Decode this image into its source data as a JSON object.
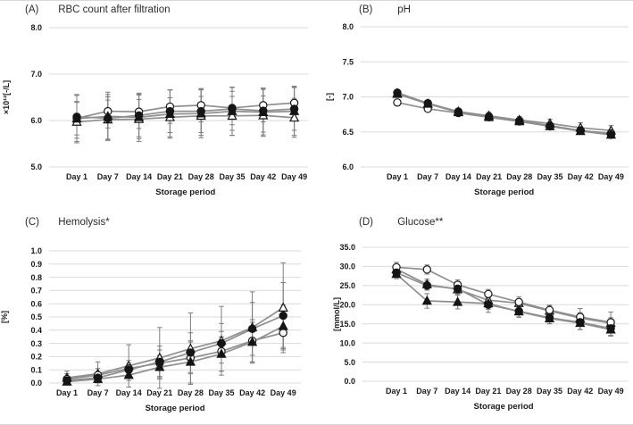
{
  "figure": {
    "xlabel": "Storage period",
    "categories": [
      "Day 1",
      "Day 7",
      "Day 14",
      "Day 21",
      "Day 28",
      "Day 35",
      "Day 42",
      "Day 49"
    ],
    "colors": {
      "gridline": "#d9d9d9",
      "series_line": "#8f8f8f",
      "error_bar": "#7d7d7d",
      "marker_stroke": "#151515",
      "text": "#1a1a1a"
    }
  },
  "chart_data": [
    {
      "type": "line",
      "panel_letter": "(A)",
      "title": "RBC count after filtration",
      "ylabel": "×10¹²[-/L]",
      "ylim": [
        5.0,
        8.0
      ],
      "yticks": [
        "8.0",
        "7.0",
        "6.0",
        "5.0"
      ],
      "grid": true,
      "legend": "none",
      "series": [
        {
          "name": "open-triangle",
          "marker": "open-triangle",
          "values": [
            5.97,
            6.02,
            6.03,
            6.07,
            6.1,
            6.1,
            6.11,
            6.06
          ],
          "err": 0.42
        },
        {
          "name": "open-circle",
          "marker": "open-circle",
          "values": [
            6.05,
            6.2,
            6.19,
            6.3,
            6.33,
            6.27,
            6.33,
            6.38
          ],
          "err": 0.36
        },
        {
          "name": "filled-triangle",
          "marker": "filled-triangle",
          "values": [
            6.04,
            6.09,
            6.07,
            6.14,
            6.15,
            6.2,
            6.18,
            6.2
          ],
          "err": 0.52
        },
        {
          "name": "filled-circle",
          "marker": "filled-circle",
          "values": [
            6.08,
            6.05,
            6.11,
            6.2,
            6.2,
            6.25,
            6.21,
            6.25
          ],
          "err": 0.46
        }
      ]
    },
    {
      "type": "line",
      "panel_letter": "(B)",
      "title": "pH",
      "ylabel": "[-]",
      "ylim": [
        6.0,
        8.0
      ],
      "yticks": [
        "8.0",
        "7.5",
        "7.0",
        "6.5",
        "6.0"
      ],
      "grid": true,
      "legend": "none",
      "series": [
        {
          "name": "open-triangle",
          "marker": "open-triangle",
          "values": [
            7.04,
            6.9,
            6.79,
            6.73,
            6.67,
            6.62,
            6.56,
            6.52
          ],
          "err": [
            0.03,
            0.03,
            0.04,
            0.05,
            0.05,
            0.06,
            0.07,
            0.07
          ]
        },
        {
          "name": "open-circle",
          "marker": "open-circle",
          "values": [
            6.92,
            6.83,
            6.77,
            6.71,
            6.65,
            6.58,
            6.52,
            6.48
          ],
          "err": 0.03
        },
        {
          "name": "filled-triangle",
          "marker": "filled-triangle",
          "values": [
            7.05,
            6.9,
            6.78,
            6.71,
            6.65,
            6.58,
            6.51,
            6.46
          ],
          "err": 0.03
        },
        {
          "name": "filled-circle",
          "marker": "filled-circle",
          "values": [
            7.06,
            6.91,
            6.79,
            6.72,
            6.66,
            6.59,
            6.52,
            6.46
          ],
          "err": 0.03
        }
      ]
    },
    {
      "type": "line",
      "panel_letter": "(C)",
      "title": "Hemolysis*",
      "ylabel": "[%]",
      "ylim": [
        0.0,
        1.0
      ],
      "yticks": [
        "1.0",
        "0.9",
        "0.8",
        "0.7",
        "0.6",
        "0.5",
        "0.4",
        "0.3",
        "0.2",
        "0.1",
        "0.0"
      ],
      "grid": true,
      "legend": "none",
      "series": [
        {
          "name": "open-triangle",
          "marker": "open-triangle",
          "values": [
            0.04,
            0.07,
            0.13,
            0.19,
            0.26,
            0.32,
            0.42,
            0.57
          ],
          "err": [
            0.05,
            0.09,
            0.16,
            0.23,
            0.27,
            0.26,
            0.27,
            0.34
          ]
        },
        {
          "name": "open-circle",
          "marker": "open-circle",
          "values": [
            0.03,
            0.06,
            0.11,
            0.15,
            0.19,
            0.24,
            0.32,
            0.38
          ],
          "err": [
            0.04,
            0.05,
            0.06,
            0.1,
            0.12,
            0.15,
            0.16,
            0.13
          ]
        },
        {
          "name": "filled-triangle",
          "marker": "filled-triangle",
          "values": [
            0.01,
            0.03,
            0.06,
            0.12,
            0.16,
            0.22,
            0.31,
            0.43
          ],
          "err": [
            0.01,
            0.02,
            0.04,
            0.09,
            0.16,
            0.13,
            0.15,
            0.16
          ]
        },
        {
          "name": "filled-circle",
          "marker": "filled-circle",
          "values": [
            0.02,
            0.04,
            0.1,
            0.16,
            0.23,
            0.3,
            0.41,
            0.51
          ],
          "err": [
            0.02,
            0.04,
            0.05,
            0.12,
            0.15,
            0.15,
            0.2,
            0.25
          ]
        }
      ]
    },
    {
      "type": "line",
      "panel_letter": "(D)",
      "title": "Glucose**",
      "ylabel": "[mmol/L]",
      "ylim": [
        0.0,
        35.0
      ],
      "yticks": [
        "35.0",
        "30.0",
        "25.0",
        "20.0",
        "15.0",
        "10.0",
        "5.0",
        "0.0"
      ],
      "grid": true,
      "legend": "none",
      "series": [
        {
          "name": "open-triangle",
          "marker": "open-triangle",
          "values": [
            29.3,
            25.3,
            24.0,
            21.2,
            20.4,
            18.4,
            16.5,
            15.2
          ],
          "err": [
            1.2,
            1.4,
            1.3,
            1.3,
            1.2,
            1.3,
            1.4,
            1.4
          ]
        },
        {
          "name": "open-circle",
          "marker": "open-circle",
          "values": [
            29.8,
            29.2,
            25.2,
            22.8,
            20.7,
            18.6,
            16.8,
            15.4
          ],
          "err": [
            1.3,
            1.2,
            1.3,
            1.2,
            1.4,
            1.3,
            2.2,
            2.7
          ]
        },
        {
          "name": "filled-triangle",
          "marker": "filled-triangle",
          "values": [
            28.0,
            21.0,
            20.7,
            20.3,
            18.2,
            16.4,
            15.2,
            13.5
          ],
          "err": [
            1.2,
            1.9,
            1.8,
            1.5,
            1.5,
            1.4,
            1.7,
            1.5
          ]
        },
        {
          "name": "filled-circle",
          "marker": "filled-circle",
          "values": [
            28.4,
            25.0,
            24.2,
            20.0,
            18.3,
            16.6,
            15.4,
            13.8
          ],
          "err": [
            1.0,
            1.2,
            1.2,
            2.0,
            1.5,
            1.5,
            1.9,
            2.0
          ]
        }
      ]
    }
  ]
}
